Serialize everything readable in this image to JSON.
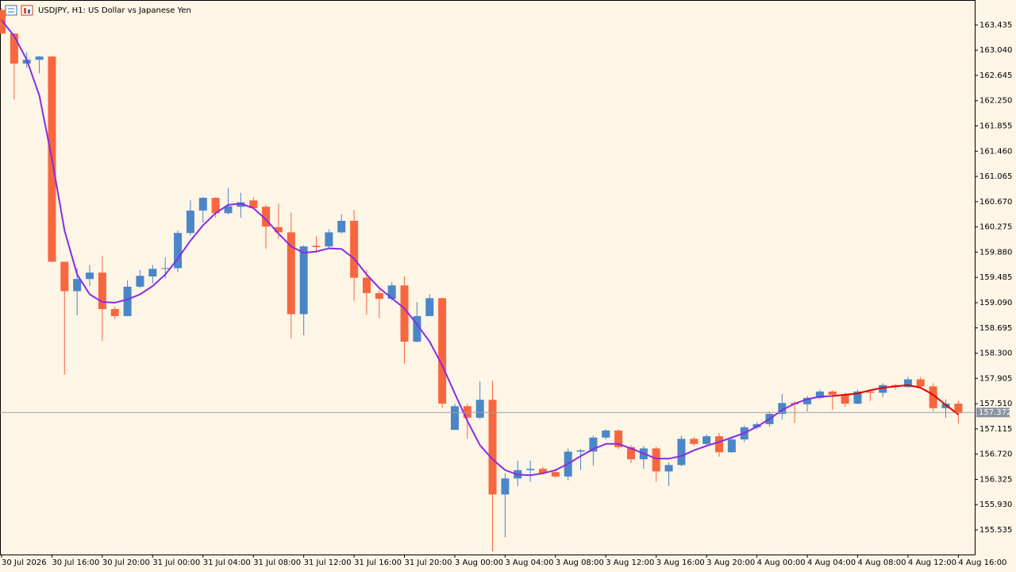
{
  "chart_data": {
    "type": "candlestick",
    "title": "USDJPY, H1:  US Dollar vs Japanese Yen",
    "categories": [
      "30 Jul 2026",
      null,
      null,
      null,
      "30 Jul 16:00",
      null,
      null,
      null,
      "30 Jul 20:00",
      null,
      null,
      null,
      "31 Jul 00:00",
      null,
      null,
      null,
      "31 Jul 04:00",
      null,
      null,
      null,
      "31 Jul 08:00",
      null,
      null,
      null,
      "31 Jul 12:00",
      null,
      null,
      null,
      "31 Jul 16:00",
      null,
      null,
      null,
      "31 Jul 20:00",
      null,
      null,
      null,
      "3 Aug 00:00",
      null,
      null,
      null,
      "3 Aug 04:00",
      null,
      null,
      null,
      "3 Aug 08:00",
      null,
      null,
      null,
      "3 Aug 12:00",
      null,
      null,
      null,
      "3 Aug 16:00",
      null,
      null,
      null,
      "3 Aug 20:00",
      null,
      null,
      null,
      "4 Aug 00:00",
      null,
      null,
      null,
      "4 Aug 04:00",
      null,
      null,
      null,
      "4 Aug 08:00",
      null,
      null,
      null,
      "4 Aug 12:00",
      null,
      null,
      null,
      "4 Aug 16:00"
    ],
    "open": [
      163.67,
      163.3,
      162.83,
      162.89,
      162.94,
      159.73,
      159.27,
      159.46,
      159.56,
      158.99,
      158.88,
      159.34,
      159.5,
      159.62,
      159.63,
      160.18,
      160.53,
      160.73,
      160.49,
      160.59,
      160.69,
      160.59,
      160.27,
      160.19,
      158.91,
      159.98,
      159.97,
      160.19,
      160.37,
      159.48,
      159.24,
      159.15,
      159.36,
      158.48,
      158.88,
      159.16,
      157.1,
      157.47,
      157.29,
      157.57,
      156.09,
      156.34,
      156.47,
      156.49,
      156.44,
      156.37,
      156.76,
      156.76,
      156.98,
      157.09,
      156.83,
      156.64,
      156.81,
      156.45,
      156.55,
      156.96,
      156.88,
      157.0,
      156.75,
      156.95,
      157.14,
      157.19,
      157.35,
      157.52,
      157.5,
      157.6,
      157.7,
      157.65,
      157.51,
      157.7,
      157.68,
      157.8,
      157.77,
      157.89,
      157.78,
      157.44,
      157.51
    ],
    "high": [
      163.7,
      163.3,
      163.01,
      162.95,
      162.95,
      159.73,
      159.63,
      159.68,
      159.82,
      159.03,
      159.44,
      159.6,
      159.68,
      159.8,
      160.22,
      160.69,
      160.74,
      160.74,
      160.88,
      160.81,
      160.74,
      160.62,
      160.64,
      160.5,
      159.99,
      160.13,
      160.24,
      160.47,
      160.54,
      159.6,
      159.29,
      159.41,
      159.5,
      159.1,
      159.22,
      159.17,
      157.51,
      157.51,
      157.86,
      157.87,
      156.42,
      156.62,
      156.62,
      156.52,
      156.49,
      156.81,
      156.8,
      157.01,
      157.11,
      157.11,
      156.86,
      156.85,
      156.84,
      156.59,
      157.01,
      156.99,
      157.03,
      157.05,
      156.99,
      157.17,
      157.22,
      157.39,
      157.66,
      157.55,
      157.63,
      157.73,
      157.72,
      157.68,
      157.73,
      157.73,
      157.83,
      157.82,
      157.93,
      157.93,
      157.83,
      157.58,
      157.56
    ],
    "low": [
      163.3,
      162.27,
      162.76,
      162.68,
      159.73,
      157.96,
      158.89,
      159.35,
      158.49,
      158.83,
      158.88,
      159.32,
      159.39,
      159.47,
      159.57,
      160.14,
      160.34,
      160.42,
      160.47,
      160.42,
      160.57,
      159.93,
      160.09,
      158.53,
      158.58,
      159.87,
      159.94,
      160.17,
      159.12,
      158.9,
      158.85,
      159.12,
      158.13,
      158.47,
      158.88,
      157.44,
      157.1,
      156.96,
      157.27,
      155.2,
      155.42,
      156.22,
      156.29,
      156.4,
      156.35,
      156.31,
      156.47,
      156.54,
      156.95,
      156.8,
      156.58,
      156.49,
      156.29,
      156.22,
      156.53,
      156.85,
      156.84,
      156.68,
      156.74,
      156.91,
      157.11,
      157.15,
      157.26,
      157.21,
      157.39,
      157.58,
      157.41,
      157.46,
      157.5,
      157.55,
      157.61,
      157.73,
      157.76,
      157.77,
      157.39,
      157.29,
      157.2
    ],
    "close": [
      163.3,
      162.83,
      162.89,
      162.94,
      159.73,
      159.27,
      159.46,
      159.56,
      158.99,
      158.88,
      159.34,
      159.51,
      159.62,
      159.63,
      160.18,
      160.53,
      160.73,
      160.49,
      160.6,
      160.66,
      160.57,
      160.28,
      160.19,
      158.91,
      159.97,
      159.96,
      160.19,
      160.37,
      159.48,
      159.24,
      159.15,
      159.36,
      158.48,
      158.88,
      159.16,
      157.51,
      157.47,
      157.29,
      157.57,
      156.09,
      156.34,
      156.47,
      156.49,
      156.42,
      156.37,
      156.76,
      156.78,
      156.98,
      157.09,
      156.83,
      156.64,
      156.81,
      156.45,
      156.55,
      156.96,
      156.88,
      157.0,
      156.75,
      156.95,
      157.14,
      157.19,
      157.35,
      157.52,
      157.5,
      157.6,
      157.7,
      157.65,
      157.51,
      157.7,
      157.68,
      157.8,
      157.77,
      157.89,
      157.78,
      157.44,
      157.51,
      157.36
    ],
    "up_color": "#4a86c8",
    "down_color": "#f8663f",
    "lines": [
      {
        "color": "#8a2be2",
        "values": [
          163.51,
          163.26,
          162.89,
          162.33,
          161.34,
          160.22,
          159.53,
          159.22,
          159.1,
          159.09,
          159.14,
          159.22,
          159.35,
          159.53,
          159.78,
          160.06,
          160.3,
          160.49,
          160.62,
          160.64,
          160.57,
          160.39,
          160.17,
          159.97,
          159.87,
          159.89,
          159.94,
          159.93,
          159.78,
          159.53,
          159.32,
          159.16,
          159.0,
          158.75,
          158.48,
          158.11,
          157.67,
          157.24,
          156.86,
          156.64,
          156.47,
          156.4,
          156.39,
          156.42,
          156.47,
          156.57,
          156.69,
          156.8,
          156.88,
          156.88,
          156.81,
          156.73,
          156.65,
          156.65,
          156.69,
          156.78,
          156.85,
          156.91,
          156.98,
          157.05,
          157.15,
          157.27,
          157.41,
          157.51,
          157.58,
          157.62,
          157.63,
          null,
          null,
          null,
          null,
          null,
          null,
          null,
          null,
          null,
          null
        ]
      },
      {
        "color": "#e00000",
        "values": [
          null,
          null,
          null,
          null,
          null,
          null,
          null,
          null,
          null,
          null,
          null,
          null,
          null,
          null,
          null,
          null,
          null,
          null,
          null,
          null,
          null,
          null,
          null,
          null,
          null,
          null,
          null,
          null,
          null,
          null,
          null,
          null,
          null,
          null,
          null,
          null,
          null,
          null,
          null,
          null,
          null,
          null,
          null,
          null,
          null,
          null,
          null,
          null,
          null,
          null,
          null,
          null,
          null,
          null,
          null,
          null,
          null,
          null,
          null,
          null,
          null,
          null,
          null,
          null,
          null,
          null,
          157.63,
          157.65,
          157.67,
          157.72,
          157.76,
          157.78,
          157.8,
          157.76,
          157.65,
          157.49,
          157.34
        ]
      }
    ],
    "current_price": 157.372,
    "ylim": [
      155.15,
      163.8
    ],
    "yticks": [
      163.435,
      {
        "value": 163.04,
        "label": "163.040"
      },
      162.645,
      {
        "value": 162.25,
        "label": "162.250"
      },
      161.855,
      {
        "value": 161.46,
        "label": "161.460"
      },
      161.065,
      {
        "value": 160.67,
        "label": "160.670"
      },
      160.275,
      {
        "value": 159.88,
        "label": "159.880"
      },
      159.485,
      {
        "value": 159.09,
        "label": "159.090"
      },
      158.695,
      {
        "value": 158.3,
        "label": "158.300"
      },
      157.905,
      {
        "value": 157.51,
        "label": "157.510"
      },
      157.115,
      {
        "value": 156.72,
        "label": "156.720"
      },
      156.325,
      {
        "value": 155.93,
        "label": "155.930"
      },
      155.535
    ]
  }
}
